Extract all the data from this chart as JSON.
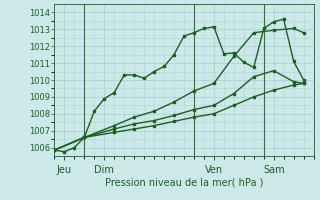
{
  "title": "Pression niveau de la mer( hPa )",
  "bg_color": "#cce8e8",
  "grid_color": "#aad4d4",
  "line_color": "#1a6020",
  "ylim": [
    1005.5,
    1014.5
  ],
  "xlim": [
    0,
    13
  ],
  "yticks": [
    1006,
    1007,
    1008,
    1009,
    1010,
    1011,
    1012,
    1013,
    1014
  ],
  "day_positions": [
    0.5,
    2.5,
    8,
    11
  ],
  "day_labels": [
    "Jeu",
    "Dim",
    "Ven",
    "Sam"
  ],
  "vline_positions": [
    1.5,
    7,
    10.5
  ],
  "lines": [
    {
      "x": [
        0,
        0.5,
        1,
        1.5,
        2,
        2.5,
        3,
        3.5,
        4,
        4.5,
        5,
        5.5,
        6,
        6.5,
        7,
        7.5,
        8,
        8.5,
        9,
        9.5,
        10,
        10.5,
        11,
        11.5,
        12,
        12.5
      ],
      "y": [
        1005.85,
        1005.75,
        1006.0,
        1006.6,
        1008.15,
        1008.9,
        1009.25,
        1010.3,
        1010.3,
        1010.1,
        1010.5,
        1010.8,
        1011.5,
        1012.6,
        1012.8,
        1013.05,
        1013.15,
        1011.55,
        1011.6,
        1011.05,
        1010.75,
        1013.05,
        1013.45,
        1013.6,
        1011.1,
        1010.0
      ]
    },
    {
      "x": [
        0,
        1.5,
        3,
        4,
        5,
        6,
        7,
        8,
        9,
        10,
        11,
        12,
        12.5
      ],
      "y": [
        1005.85,
        1006.6,
        1007.3,
        1007.8,
        1008.15,
        1008.7,
        1009.35,
        1009.8,
        1011.4,
        1012.8,
        1012.95,
        1013.05,
        1012.8
      ]
    },
    {
      "x": [
        0,
        1.5,
        3,
        4,
        5,
        6,
        7,
        8,
        9,
        10,
        11,
        12,
        12.5
      ],
      "y": [
        1005.85,
        1006.6,
        1007.1,
        1007.4,
        1007.6,
        1007.9,
        1008.25,
        1008.5,
        1009.2,
        1010.2,
        1010.55,
        1009.9,
        1009.8
      ]
    },
    {
      "x": [
        0,
        1.5,
        3,
        4,
        5,
        6,
        7,
        8,
        9,
        10,
        11,
        12,
        12.5
      ],
      "y": [
        1005.85,
        1006.6,
        1006.9,
        1007.1,
        1007.3,
        1007.55,
        1007.8,
        1008.0,
        1008.5,
        1009.0,
        1009.4,
        1009.7,
        1009.8
      ]
    }
  ],
  "markersize": 2.0,
  "linewidth": 1.0
}
